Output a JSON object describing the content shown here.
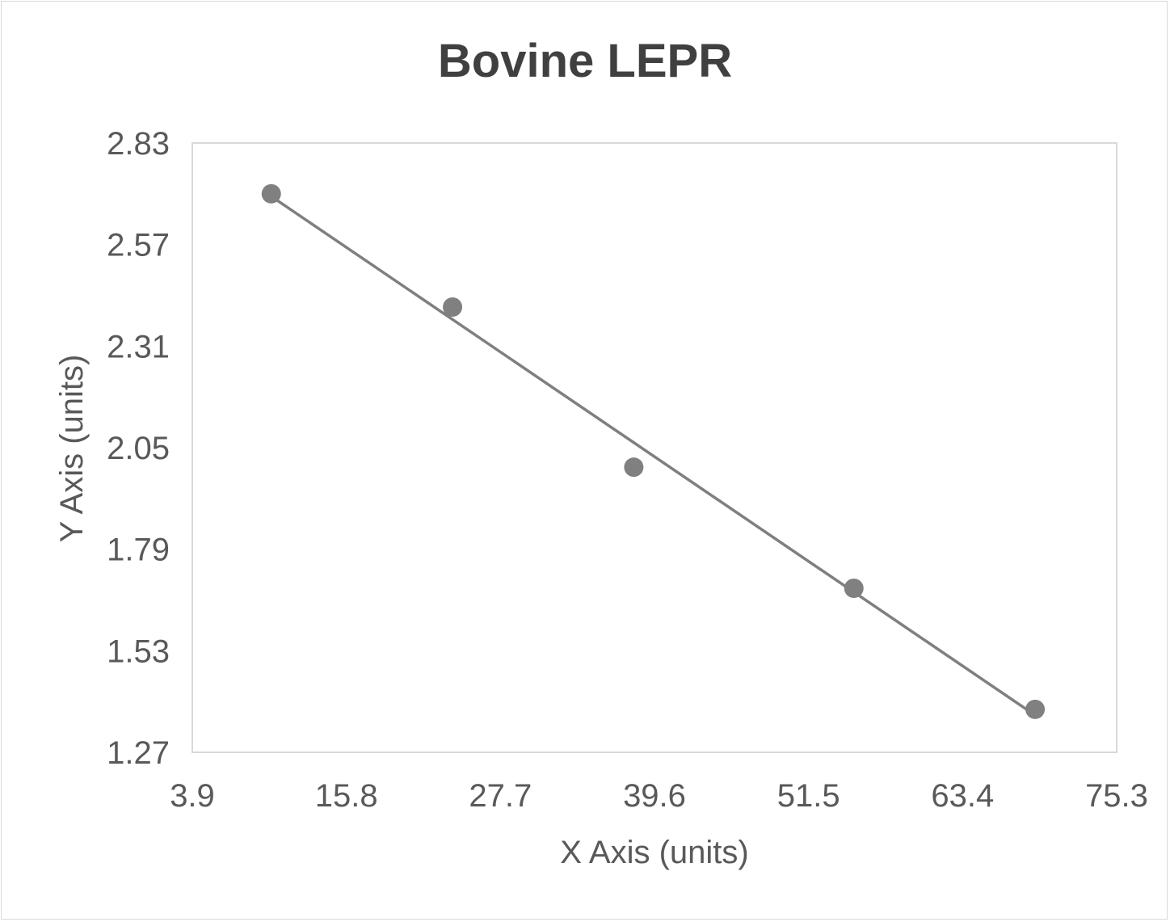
{
  "chart_data": {
    "type": "scatter",
    "title": "Bovine LEPR",
    "xlabel": "X Axis (units)",
    "ylabel": "Y Axis (units)",
    "xlim": [
      3.9,
      75.3
    ],
    "ylim": [
      1.27,
      2.83
    ],
    "x_ticks": [
      "3.9",
      "15.8",
      "27.7",
      "39.6",
      "51.5",
      "63.4",
      "75.3"
    ],
    "y_ticks": [
      "1.27",
      "1.53",
      "1.79",
      "2.05",
      "2.31",
      "2.57",
      "2.83"
    ],
    "grid": false,
    "legend": "none",
    "trendline": "linear",
    "series": [
      {
        "x": [
          10,
          24,
          38,
          55,
          69
        ],
        "y": [
          2.7,
          2.41,
          2.0,
          1.69,
          1.38
        ]
      }
    ],
    "colors": {
      "marker": "#808080",
      "trendline": "#7f7f7f",
      "text": "#595959",
      "title": "#404040",
      "plot_border": "#d9d9d9"
    }
  }
}
